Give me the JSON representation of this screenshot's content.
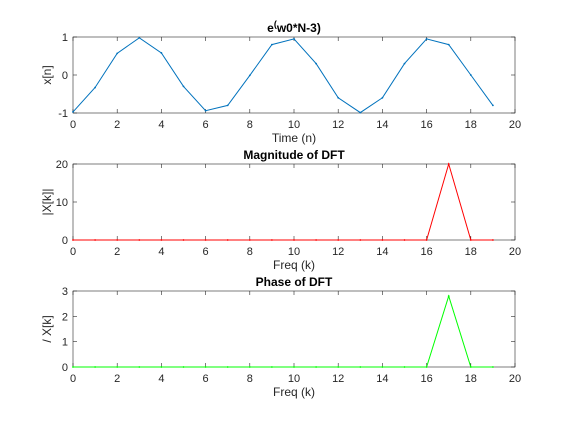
{
  "chart_data": [
    {
      "type": "line",
      "title": "e^(w0*N-3)",
      "title_base": "e",
      "title_exp": "(",
      "title_rest": "w0*N-3)",
      "xlabel": "Time (n)",
      "ylabel": "x[n]",
      "xlim": [
        0,
        20
      ],
      "ylim": [
        -1,
        1
      ],
      "xticks": [
        "0",
        "2",
        "4",
        "6",
        "8",
        "10",
        "12",
        "14",
        "16",
        "18",
        "20"
      ],
      "yticks": [
        "-1",
        "0",
        "1"
      ],
      "grid": false,
      "color": "#0072BD",
      "x": [
        0,
        1,
        2,
        3,
        4,
        5,
        6,
        7,
        8,
        9,
        10,
        11,
        12,
        13,
        14,
        15,
        16,
        17,
        18,
        19
      ],
      "series": [
        {
          "values": [
            -0.97,
            -0.33,
            0.57,
            0.98,
            0.58,
            -0.3,
            -0.94,
            -0.8,
            -0.01,
            0.8,
            0.95,
            0.3,
            -0.6,
            -0.99,
            -0.6,
            0.3,
            0.95,
            0.8,
            0.0,
            -0.8
          ]
        }
      ]
    },
    {
      "type": "line",
      "title": "Magnitude of DFT",
      "xlabel": "Freq (k)",
      "ylabel": "|X[k]|",
      "xlim": [
        0,
        20
      ],
      "ylim": [
        0,
        20
      ],
      "xticks": [
        "0",
        "2",
        "4",
        "6",
        "8",
        "10",
        "12",
        "14",
        "16",
        "18",
        "20"
      ],
      "yticks": [
        "0",
        "10",
        "20"
      ],
      "grid": false,
      "color": "#FF0000",
      "x": [
        0,
        1,
        2,
        3,
        4,
        5,
        6,
        7,
        8,
        9,
        10,
        11,
        12,
        13,
        14,
        15,
        16,
        17,
        18,
        19
      ],
      "series": [
        {
          "values": [
            0,
            0,
            0,
            0,
            0,
            0,
            0,
            0,
            0,
            0,
            0,
            0,
            0,
            0,
            0,
            0,
            0,
            20,
            0,
            0
          ]
        }
      ]
    },
    {
      "type": "line",
      "title": "Phase of DFT",
      "xlabel": "Freq (k)",
      "ylabel": "/ X[k]",
      "xlim": [
        0,
        20
      ],
      "ylim": [
        0,
        3
      ],
      "xticks": [
        "0",
        "2",
        "4",
        "6",
        "8",
        "10",
        "12",
        "14",
        "16",
        "18",
        "20"
      ],
      "yticks": [
        "0",
        "1",
        "2",
        "3"
      ],
      "grid": false,
      "color": "#00FF00",
      "x": [
        0,
        1,
        2,
        3,
        4,
        5,
        6,
        7,
        8,
        9,
        10,
        11,
        12,
        13,
        14,
        15,
        16,
        17,
        18,
        19
      ],
      "series": [
        {
          "values": [
            0,
            0,
            0,
            0,
            0,
            0,
            0,
            0,
            0,
            0,
            0,
            0,
            0,
            0,
            0,
            0,
            0,
            2.8,
            0,
            0
          ]
        }
      ]
    }
  ]
}
